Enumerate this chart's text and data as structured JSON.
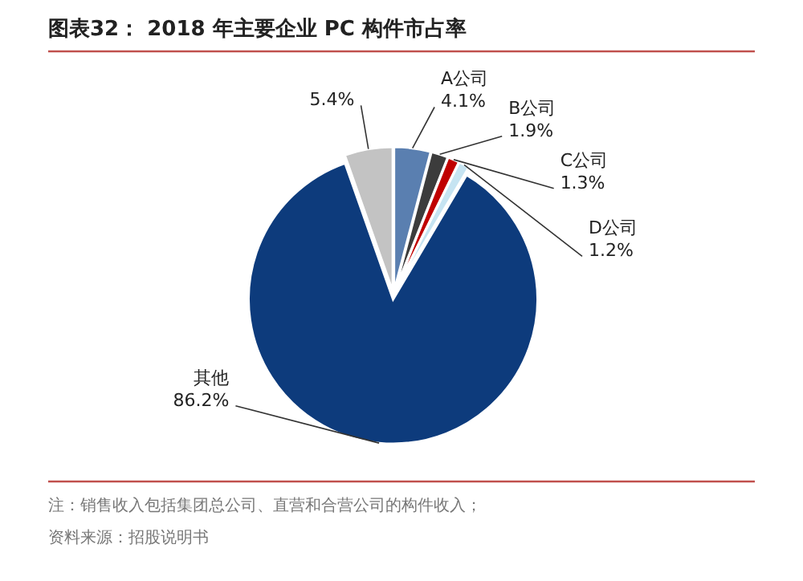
{
  "chart_data": {
    "type": "pie",
    "title": "图表32：  2018 年主要企业 PC 构件市占率",
    "categories": [
      null,
      "A公司",
      "B公司",
      "C公司",
      "D公司",
      "其他"
    ],
    "values": [
      5.4,
      4.1,
      1.9,
      1.3,
      1.2,
      86.2
    ],
    "colors": [
      "#c3c3c3",
      "#5a7fb0",
      "#3c3c3c",
      "#c00000",
      "#c6e4f2",
      "#0d3b7c"
    ],
    "value_labels": [
      "5.4%",
      "4.1%",
      "1.9%",
      "1.3%",
      "1.2%",
      "86.2%"
    ],
    "annotations": [
      "注：销售收入包括集团总公司、直营和合营公司的构件收入；",
      "资料来源：招股说明书"
    ]
  }
}
